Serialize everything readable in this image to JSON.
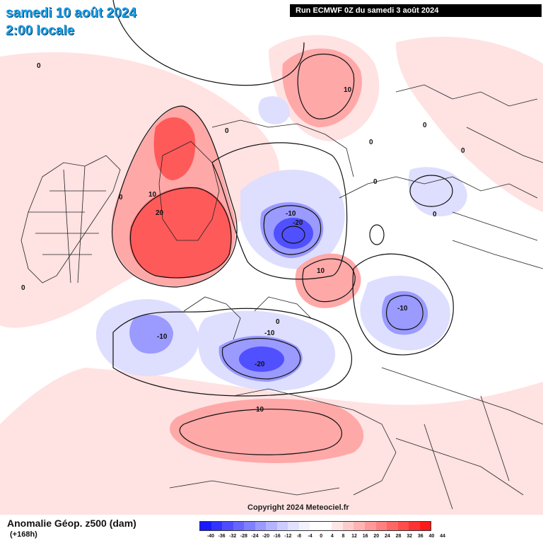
{
  "header": {
    "date_line": "samedi 10 août 2024",
    "time_line": "2:00 locale",
    "run_info": "Run ECMWF 0Z du samedi 3 août 2024"
  },
  "footer": {
    "copyright": "Copyright 2024 Meteociel.fr",
    "legend_title": "Anomalie Géop. z500 (dam)",
    "lead_time": "(+168h)"
  },
  "colorbar": {
    "labels": [
      "-40",
      "-36",
      "-32",
      "-28",
      "-24",
      "-20",
      "-16",
      "-12",
      "-8",
      "-4",
      "0",
      "4",
      "8",
      "12",
      "16",
      "20",
      "24",
      "28",
      "32",
      "36",
      "40",
      "44"
    ],
    "colors": [
      "#1a1aff",
      "#3333ff",
      "#4d4dff",
      "#6666ff",
      "#7f7fff",
      "#9999ff",
      "#b3b3ff",
      "#ccccff",
      "#e0e0ff",
      "#f2f2ff",
      "#ffffff",
      "#ffffff",
      "#ffe6e6",
      "#ffcccc",
      "#ffb3b3",
      "#ff9999",
      "#ff8080",
      "#ff6666",
      "#ff4d4d",
      "#ff3333",
      "#ff1a1a"
    ]
  },
  "map_labels": {
    "contour_0": "0",
    "contour_10": "10",
    "contour_20": "20",
    "contour_m10": "-10",
    "contour_m20": "-20"
  },
  "colors": {
    "positive_strong": "#ff4a4a",
    "positive_weak": "#ffd6d6",
    "negative_strong": "#4a4aff",
    "negative_weak": "#d6d6ff",
    "title_blue": "#1ea0e6"
  }
}
